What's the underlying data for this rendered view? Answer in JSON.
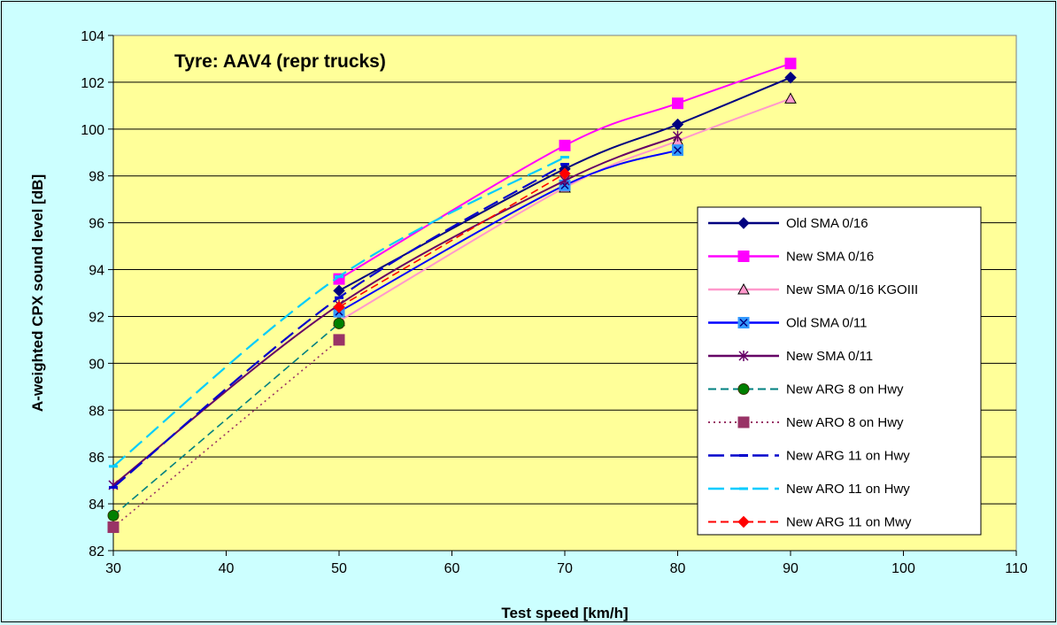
{
  "chart_data": {
    "type": "line",
    "title": "",
    "annotation": "Tyre: AAV4 (repr trucks)",
    "xlabel": "Test speed [km/h]",
    "ylabel": "A-weighted CPX sound level [dB]",
    "xlim": [
      30,
      110
    ],
    "ylim": [
      82,
      104
    ],
    "xticks": [
      30,
      40,
      50,
      60,
      70,
      80,
      90,
      100,
      110
    ],
    "yticks": [
      82,
      84,
      86,
      88,
      90,
      92,
      94,
      96,
      98,
      100,
      102,
      104
    ],
    "grid": "horizontal",
    "plot_background": "#ffff99",
    "page_background": "#ccffff",
    "legend_position": "right",
    "series": [
      {
        "name": "Old SMA 0/16",
        "x": [
          50,
          70,
          80,
          90
        ],
        "y": [
          93.1,
          98.3,
          100.2,
          102.2
        ],
        "color": "#000080",
        "dash": "solid",
        "marker": "diamond",
        "smooth": true
      },
      {
        "name": "New SMA 0/16",
        "x": [
          50,
          70,
          80,
          90
        ],
        "y": [
          93.6,
          99.3,
          101.1,
          102.8
        ],
        "color": "#ff00ff",
        "dash": "solid",
        "marker": "square",
        "smooth": true
      },
      {
        "name": "New SMA 0/16 KGOIII",
        "x": [
          50,
          70,
          80,
          90
        ],
        "y": [
          91.8,
          97.5,
          99.5,
          101.3
        ],
        "color": "#ff99cc",
        "dash": "solid",
        "marker": "triangle",
        "smooth": true
      },
      {
        "name": "Old SMA 0/11",
        "x": [
          50,
          70,
          80
        ],
        "y": [
          92.2,
          97.6,
          99.1
        ],
        "color": "#0000ff",
        "dash": "solid",
        "marker": "xsquare",
        "smooth": true
      },
      {
        "name": "New SMA 0/11",
        "x": [
          30,
          50,
          70,
          80
        ],
        "y": [
          84.8,
          92.5,
          97.8,
          99.7
        ],
        "color": "#660066",
        "dash": "solid",
        "marker": "star",
        "smooth": true
      },
      {
        "name": "New ARG 8 on Hwy",
        "x": [
          30,
          50
        ],
        "y": [
          83.5,
          91.7
        ],
        "color": "#008080",
        "dash": "dash",
        "marker": "circle",
        "smooth": false
      },
      {
        "name": "New ARO 8 on Hwy",
        "x": [
          30,
          50
        ],
        "y": [
          83.0,
          91.0
        ],
        "color": "#993366",
        "dash": "dot",
        "marker": "square",
        "smooth": false
      },
      {
        "name": "New ARG 11 on Hwy",
        "x": [
          30,
          50,
          70
        ],
        "y": [
          84.7,
          92.8,
          98.5
        ],
        "color": "#0000cc",
        "dash": "longdash",
        "marker": "dash",
        "smooth": true
      },
      {
        "name": "New ARO 11 on Hwy",
        "x": [
          30,
          50,
          70
        ],
        "y": [
          85.6,
          93.7,
          98.8
        ],
        "color": "#00ccff",
        "dash": "longdash",
        "marker": "dash",
        "smooth": true
      },
      {
        "name": "New ARG 11 on Mwy",
        "x": [
          50,
          70
        ],
        "y": [
          92.4,
          98.1
        ],
        "color": "#ff0000",
        "dash": "dash",
        "marker": "diamond",
        "smooth": false
      }
    ]
  }
}
